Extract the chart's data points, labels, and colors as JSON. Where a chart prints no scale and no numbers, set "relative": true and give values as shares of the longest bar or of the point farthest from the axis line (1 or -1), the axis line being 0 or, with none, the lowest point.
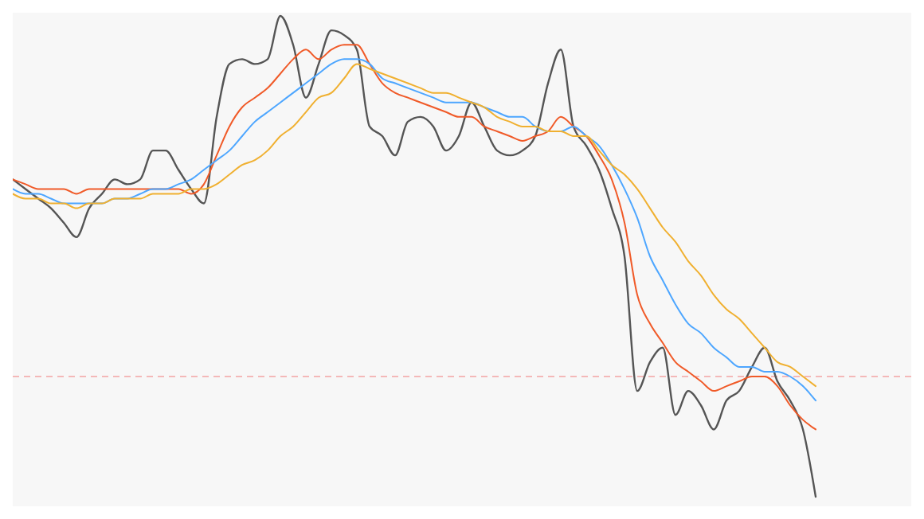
{
  "chart_data": {
    "type": "line",
    "relative": true,
    "categories": [
      null,
      null,
      null,
      null,
      null,
      null,
      null,
      null,
      null,
      null,
      null,
      null,
      null,
      null,
      null,
      null,
      null,
      null,
      null,
      null,
      null,
      null,
      null,
      null,
      null,
      null,
      null,
      null,
      null,
      null,
      null,
      null,
      null,
      null,
      null,
      null,
      null,
      null,
      null,
      null,
      null,
      null,
      null,
      null,
      null,
      null,
      null,
      null,
      null,
      null,
      null,
      null,
      null,
      null,
      null,
      null,
      null,
      null,
      null,
      null,
      null,
      null,
      null,
      null
    ],
    "series": [
      {
        "color": "#555555",
        "values": [
          0.66,
          0.64,
          0.62,
          0.6,
          0.57,
          0.54,
          0.6,
          0.63,
          0.66,
          0.65,
          0.66,
          0.72,
          0.72,
          0.68,
          0.64,
          0.61,
          0.79,
          0.9,
          0.91,
          0.9,
          0.91,
          1,
          0.94,
          0.83,
          0.9,
          0.97,
          0.96,
          0.93,
          0.77,
          0.75,
          0.71,
          0.78,
          0.79,
          0.77,
          0.72,
          0.75,
          0.82,
          0.77,
          0.72,
          0.71,
          0.72,
          0.75,
          0.86,
          0.93,
          0.77,
          0.73,
          0.68,
          0.6,
          0.5,
          0.22,
          0.28,
          0.31,
          0.17,
          0.22,
          0.19,
          0.14,
          0.2,
          0.22,
          0.27,
          0.31,
          0.24,
          0.2,
          0.14,
          0
        ]
      },
      {
        "color": "#f05a28",
        "values": [
          0.66,
          0.65,
          0.64,
          0.64,
          0.64,
          0.63,
          0.64,
          0.64,
          0.64,
          0.64,
          0.64,
          0.64,
          0.64,
          0.64,
          0.63,
          0.65,
          0.71,
          0.77,
          0.81,
          0.83,
          0.85,
          0.88,
          0.91,
          0.93,
          0.91,
          0.93,
          0.94,
          0.94,
          0.9,
          0.86,
          0.84,
          0.83,
          0.82,
          0.81,
          0.8,
          0.79,
          0.79,
          0.77,
          0.76,
          0.75,
          0.74,
          0.75,
          0.76,
          0.79,
          0.77,
          0.75,
          0.71,
          0.66,
          0.57,
          0.42,
          0.36,
          0.32,
          0.28,
          0.26,
          0.24,
          0.22,
          0.23,
          0.24,
          0.25,
          0.25,
          0.23,
          0.19,
          0.16,
          0.14
        ]
      },
      {
        "color": "#4da6ff",
        "values": [
          0.64,
          0.63,
          0.63,
          0.62,
          0.61,
          0.61,
          0.61,
          0.61,
          0.62,
          0.62,
          0.63,
          0.64,
          0.64,
          0.65,
          0.66,
          0.68,
          0.7,
          0.72,
          0.75,
          0.78,
          0.8,
          0.82,
          0.84,
          0.86,
          0.88,
          0.9,
          0.91,
          0.91,
          0.9,
          0.87,
          0.86,
          0.85,
          0.84,
          0.83,
          0.82,
          0.82,
          0.82,
          0.81,
          0.8,
          0.79,
          0.79,
          0.77,
          0.76,
          0.76,
          0.77,
          0.75,
          0.73,
          0.69,
          0.64,
          0.58,
          0.5,
          0.45,
          0.4,
          0.36,
          0.34,
          0.31,
          0.29,
          0.27,
          0.27,
          0.26,
          0.26,
          0.25,
          0.23,
          0.2
        ]
      },
      {
        "color": "#f0b030",
        "values": [
          0.63,
          0.62,
          0.62,
          0.61,
          0.61,
          0.6,
          0.61,
          0.61,
          0.62,
          0.62,
          0.62,
          0.63,
          0.63,
          0.63,
          0.64,
          0.64,
          0.65,
          0.67,
          0.69,
          0.7,
          0.72,
          0.75,
          0.77,
          0.8,
          0.83,
          0.84,
          0.87,
          0.9,
          0.89,
          0.88,
          0.87,
          0.86,
          0.85,
          0.84,
          0.84,
          0.83,
          0.82,
          0.81,
          0.79,
          0.78,
          0.77,
          0.77,
          0.76,
          0.76,
          0.75,
          0.75,
          0.72,
          0.69,
          0.67,
          0.64,
          0.6,
          0.56,
          0.53,
          0.49,
          0.46,
          0.42,
          0.39,
          0.37,
          0.34,
          0.31,
          0.28,
          0.27,
          0.25,
          0.23
        ]
      }
    ],
    "ref_lines": [
      {
        "axis": "y",
        "value": 0.25,
        "color": "#f4b8b8",
        "line_style": "dashed"
      }
    ],
    "line_style": "solid"
  }
}
